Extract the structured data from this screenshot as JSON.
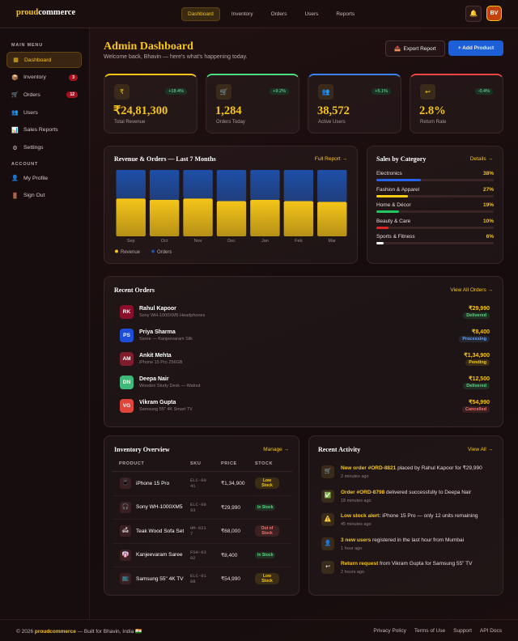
{
  "brand": {
    "first": "proud",
    "second": "commerce"
  },
  "nav": {
    "items": [
      "Dashboard",
      "Inventory",
      "Orders",
      "Users",
      "Reports"
    ],
    "bell": "🔔",
    "avatar": "BV"
  },
  "sidebar": {
    "main_heading": "MAIN MENU",
    "main": [
      {
        "icon": "▦",
        "label": "Dashboard"
      },
      {
        "icon": "📦",
        "label": "Inventory",
        "badge": "3"
      },
      {
        "icon": "🛒",
        "label": "Orders",
        "badge": "12"
      },
      {
        "icon": "👥",
        "label": "Users"
      },
      {
        "icon": "📊",
        "label": "Sales Reports"
      },
      {
        "icon": "⚙",
        "label": "Settings"
      }
    ],
    "account_heading": "ACCOUNT",
    "account": [
      {
        "icon": "👤",
        "label": "My Profile"
      },
      {
        "icon": "🚪",
        "label": "Sign Out"
      }
    ]
  },
  "header": {
    "title": "Admin Dashboard",
    "subtitle": "Welcome back, Bhavin — here's what's happening today.",
    "export_icon": "📤",
    "export": "Export Report",
    "add": "+ Add Product"
  },
  "stats": [
    {
      "icon": "₹",
      "value": "₹24,81,300",
      "label": "Total Revenue",
      "change": "+18.4%",
      "color": "#f5c518"
    },
    {
      "icon": "🛒",
      "value": "1,284",
      "label": "Orders Today",
      "change": "+9.2%",
      "color": "#4ade80"
    },
    {
      "icon": "👥",
      "value": "38,572",
      "label": "Active Users",
      "change": "+5.1%",
      "color": "#3b82f6"
    },
    {
      "icon": "↩",
      "value": "2.8%",
      "label": "Return Rate",
      "change": "-0.4%",
      "color": "#ef4444"
    }
  ],
  "revenue_panel": {
    "link": "Full Report →"
  },
  "chart_data": {
    "type": "bar",
    "stacked": true,
    "title": "Revenue & Orders — Last 7 Months",
    "categories": [
      "Sep",
      "Oct",
      "Nov",
      "Dec",
      "Jan",
      "Feb",
      "Mar"
    ],
    "series": [
      {
        "name": "Revenue",
        "color": "#f5c518",
        "values": [
          57,
          55,
          57,
          53,
          55,
          53,
          52
        ]
      },
      {
        "name": "Orders",
        "color": "#1e4fa8",
        "values": [
          43,
          45,
          43,
          47,
          45,
          47,
          48
        ]
      }
    ]
  },
  "category_panel": {
    "title": "Sales by Category",
    "link": "Details →",
    "chart_data": {
      "type": "progress",
      "categories": [
        "Electronics",
        "Fashion & Apparel",
        "Home & Décor",
        "Beauty & Care",
        "Sports & Fitness"
      ],
      "values": [
        38,
        27,
        19,
        10,
        6
      ],
      "value_labels": [
        "38%",
        "27%",
        "19%",
        "10%",
        "6%"
      ],
      "colors": [
        "#2563eb",
        "#facc15",
        "#22c55e",
        "#dc2626",
        "#f5f5f5"
      ],
      "xlim": [
        0,
        100
      ]
    }
  },
  "orders": {
    "title": "Recent Orders",
    "link": "View All Orders →",
    "rows": [
      {
        "initials": "RK",
        "avatar_color": "#8b0f2a",
        "name": "Rahul Kapoor",
        "product": "Sony WH-1000XM5 Headphones",
        "amount": "₹29,990",
        "status": "Delivered",
        "status_color": "#4ade80"
      },
      {
        "initials": "PS",
        "avatar_color": "#1d4ed8",
        "name": "Priya Sharma",
        "product": "Saree — Kanjeevaram Silk",
        "amount": "₹8,400",
        "status": "Processing",
        "status_color": "#60a5fa"
      },
      {
        "initials": "AM",
        "avatar_color": "#7f1d2d",
        "name": "Ankit Mehta",
        "product": "iPhone 15 Pro 256GB",
        "amount": "₹1,34,900",
        "status": "Pending",
        "status_color": "#facc15"
      },
      {
        "initials": "DN",
        "avatar_color": "#3fb979",
        "name": "Deepa Nair",
        "product": "Wooden Study Desk — Walnut",
        "amount": "₹12,500",
        "status": "Delivered",
        "status_color": "#4ade80"
      },
      {
        "initials": "VG",
        "avatar_color": "#e0453a",
        "name": "Vikram Gupta",
        "product": "Samsung 55\" 4K Smart TV",
        "amount": "₹54,990",
        "status": "Cancelled",
        "status_color": "#f87171"
      }
    ]
  },
  "inventory": {
    "title": "Inventory Overview",
    "link": "Manage →",
    "headers": [
      "PRODUCT",
      "SKU",
      "PRICE",
      "STOCK"
    ],
    "rows": [
      {
        "icon": "📱",
        "name": "iPhone 15 Pro",
        "sku": "ELC-0041",
        "price": "₹1,34,900",
        "stock": "Low Stock",
        "stock_color": "#facc15"
      },
      {
        "icon": "🎧",
        "name": "Sony WH-1000XM5",
        "sku": "ELC-0093",
        "price": "₹29,990",
        "stock": "In Stock",
        "stock_color": "#4ade80"
      },
      {
        "icon": "🛋",
        "name": "Teak Wood Sofa Set",
        "sku": "HM-0217",
        "price": "₹68,000",
        "stock": "Out of Stock",
        "stock_color": "#f87171"
      },
      {
        "icon": "👘",
        "name": "Kanjeevaram Saree",
        "sku": "FSH-0382",
        "price": "₹8,400",
        "stock": "In Stock",
        "stock_color": "#4ade80"
      },
      {
        "icon": "📺",
        "name": "Samsung 55\" 4K TV",
        "sku": "ELC-0108",
        "price": "₹54,990",
        "stock": "Low Stock",
        "stock_color": "#facc15"
      }
    ]
  },
  "activity": {
    "title": "Recent Activity",
    "link": "View All →",
    "items": [
      {
        "icon": "🛒",
        "highlight": "New order #ORD-8821",
        "text": " placed by Rahul Kapoor for ₹29,990",
        "time": "2 minutes ago"
      },
      {
        "icon": "✅",
        "highlight": "Order #ORD-8798",
        "text": " delivered successfully to Deepa Nair",
        "time": "18 minutes ago"
      },
      {
        "icon": "⚠️",
        "highlight": "Low stock alert:",
        "text": " iPhone 15 Pro — only 12 units remaining",
        "time": "45 minutes ago"
      },
      {
        "icon": "👤",
        "highlight": "3 new users",
        "text": " registered in the last hour from Mumbai",
        "time": "1 hour ago"
      },
      {
        "icon": "↩",
        "highlight": "Return request",
        "text": " from Vikram Gupta for Samsung 55\" TV",
        "time": "2 hours ago"
      }
    ]
  },
  "footer": {
    "copyright": "© 2026",
    "brand": "proudcommerce",
    "built": "— Built for Bhavin, India 🇮🇳",
    "links": [
      "Privacy Policy",
      "Terms of Use",
      "Support",
      "API Docs"
    ]
  }
}
